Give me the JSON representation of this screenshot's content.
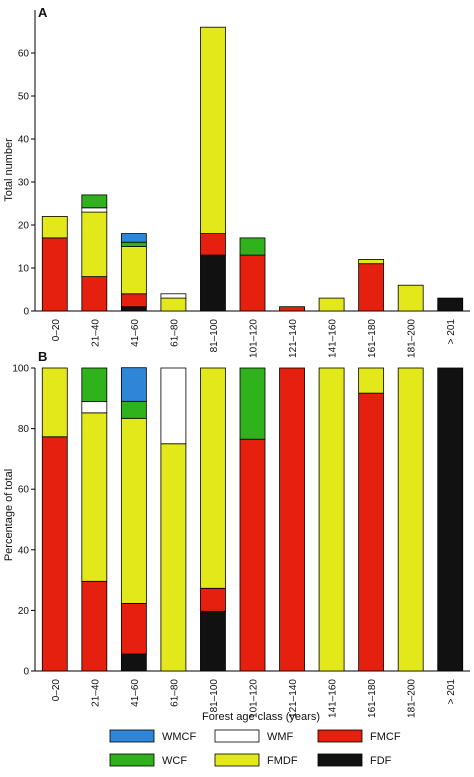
{
  "colors": {
    "WMCF": "#2f86d6",
    "WCF": "#2fb21c",
    "WMF": "#ffffff",
    "FMCF": "#e5200e",
    "FMDF": "#e3e81a",
    "FDF": "#111111"
  },
  "chart_data": [
    {
      "type": "bar",
      "stacked": true,
      "panel": "A",
      "categories": [
        "0–20",
        "21–40",
        "41–60",
        "61–80",
        "81–100",
        "101–120",
        "121–140",
        "141–160",
        "161–180",
        "181–200",
        "> 201"
      ],
      "series": [
        {
          "name": "FDF",
          "values": [
            0,
            0,
            1,
            0,
            13,
            0,
            0,
            0,
            0,
            0,
            3
          ]
        },
        {
          "name": "FMCF",
          "values": [
            17,
            8,
            3,
            0,
            5,
            13,
            1,
            0,
            11,
            0,
            0
          ]
        },
        {
          "name": "FMDF",
          "values": [
            5,
            15,
            11,
            3,
            48,
            0,
            0,
            3,
            1,
            6,
            0
          ]
        },
        {
          "name": "WMF",
          "values": [
            0,
            1,
            0,
            1,
            0,
            0,
            0,
            0,
            0,
            0,
            0
          ]
        },
        {
          "name": "WCF",
          "values": [
            0,
            3,
            1,
            0,
            0,
            4,
            0,
            0,
            0,
            0,
            0
          ]
        },
        {
          "name": "WMCF",
          "values": [
            0,
            0,
            2,
            0,
            0,
            0,
            0,
            0,
            0,
            0,
            0
          ]
        }
      ],
      "ylabel": "Total number",
      "xlabel": "",
      "ylim": [
        0,
        70
      ],
      "yticks": [
        0,
        10,
        20,
        30,
        40,
        50,
        60
      ],
      "grid": false
    },
    {
      "type": "bar",
      "stacked": true,
      "panel": "B",
      "categories": [
        "0–20",
        "21–40",
        "41–60",
        "61–80",
        "81–100",
        "101–120",
        "121–140",
        "141–160",
        "161–180",
        "181–200",
        "> 201"
      ],
      "series": [
        {
          "name": "FDF",
          "values": [
            0,
            0,
            5.6,
            0,
            19.7,
            0,
            0,
            0,
            0,
            0,
            100
          ]
        },
        {
          "name": "FMCF",
          "values": [
            77.3,
            29.6,
            16.7,
            0,
            7.6,
            76.5,
            100,
            0,
            91.7,
            0,
            0
          ]
        },
        {
          "name": "FMDF",
          "values": [
            22.7,
            55.6,
            61.1,
            75,
            72.7,
            0,
            0,
            100,
            8.3,
            100,
            0
          ]
        },
        {
          "name": "WMF",
          "values": [
            0,
            3.7,
            0,
            25,
            0,
            0,
            0,
            0,
            0,
            0,
            0
          ]
        },
        {
          "name": "WCF",
          "values": [
            0,
            11.1,
            5.6,
            0,
            0,
            23.5,
            0,
            0,
            0,
            0,
            0
          ]
        },
        {
          "name": "WMCF",
          "values": [
            0,
            0,
            11.1,
            0,
            0,
            0,
            0,
            0,
            0,
            0,
            0
          ]
        }
      ],
      "ylabel": "Percentage of total",
      "xlabel": "Forest age class (years)",
      "ylim": [
        0,
        100
      ],
      "yticks": [
        0,
        20,
        40,
        60,
        80,
        100
      ],
      "grid": false
    }
  ],
  "legend": {
    "placement": "bottom",
    "items": [
      {
        "name": "WMCF"
      },
      {
        "name": "WMF"
      },
      {
        "name": "FMCF"
      },
      {
        "name": "WCF"
      },
      {
        "name": "FMDF"
      },
      {
        "name": "FDF"
      }
    ]
  }
}
